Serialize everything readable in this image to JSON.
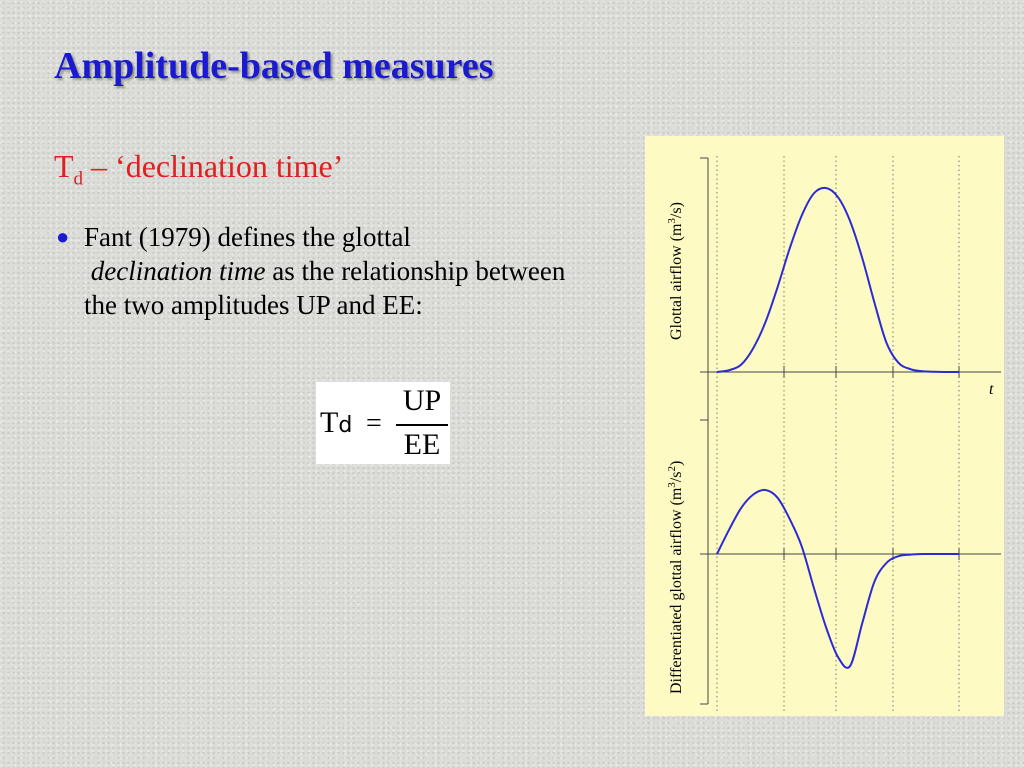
{
  "slide": {
    "title": "Amplitude-based measures",
    "subtitle_main": "T",
    "subtitle_sub": "d",
    "subtitle_rest": " – ‘declination time’",
    "bullet": {
      "part1": "Fant (1979) defines the glottal",
      "italic": "declination time",
      "part2": " as the relationship between the two amplitudes UP and EE:"
    },
    "formula": {
      "lhs": "T",
      "lhs_sub": "d",
      "eq": "=",
      "numerator": "UP",
      "denominator": "EE"
    },
    "colors": {
      "title": "#1a1ad0",
      "subtitle": "#e02020",
      "curve": "#2b2bd6",
      "chart_bg": "#fdfbc3"
    }
  },
  "chart_data": [
    {
      "type": "line",
      "title": "",
      "ylabel_main": "Glottal airflow (m",
      "ylabel_sup": "3",
      "ylabel_end": "/s)",
      "xlabel": "t",
      "xlim": [
        0,
        1
      ],
      "ylim": [
        0,
        1
      ],
      "series": [
        {
          "x": [
            0,
            0.05,
            0.1,
            0.15,
            0.2,
            0.25,
            0.3,
            0.35,
            0.4,
            0.45,
            0.5,
            0.55,
            0.6,
            0.65,
            0.7,
            0.75,
            0.8,
            0.85,
            0.9,
            0.95,
            1.0
          ],
          "values": [
            0,
            0.01,
            0.04,
            0.13,
            0.27,
            0.46,
            0.67,
            0.85,
            0.97,
            1.0,
            0.95,
            0.82,
            0.62,
            0.38,
            0.16,
            0.05,
            0.015,
            0.004,
            0.001,
            0,
            0
          ]
        }
      ]
    },
    {
      "type": "line",
      "title": "",
      "ylabel_main": "Differentiated glottal airflow (m",
      "ylabel_sup1": "3",
      "ylabel_mid": "/s",
      "ylabel_sup2": "2",
      "ylabel_end": ")",
      "xlim": [
        0,
        1
      ],
      "ylim": [
        -1,
        1
      ],
      "series": [
        {
          "x": [
            0,
            0.05,
            0.1,
            0.15,
            0.2,
            0.25,
            0.3,
            0.35,
            0.4,
            0.45,
            0.5,
            0.55,
            0.6,
            0.65,
            0.7,
            0.75,
            0.8,
            0.85,
            0.9,
            0.95,
            1.0
          ],
          "values": [
            0,
            0.38,
            0.72,
            0.93,
            1.0,
            0.88,
            0.55,
            0.12,
            -0.3,
            -0.65,
            -0.92,
            -1.0,
            -0.62,
            -0.25,
            -0.08,
            -0.02,
            -0.005,
            0,
            0,
            0,
            0
          ]
        }
      ]
    }
  ]
}
